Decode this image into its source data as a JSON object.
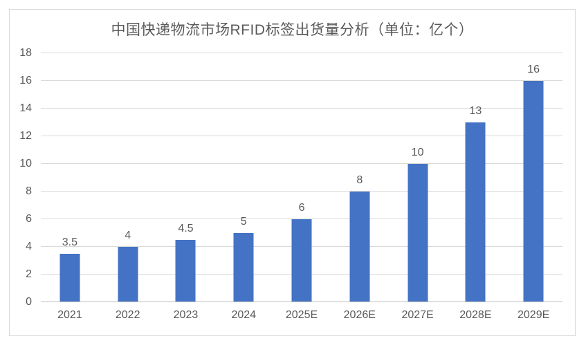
{
  "title": "中国快递物流市场RFID标签出货量分析（单位：亿个）",
  "chart_data": {
    "type": "bar",
    "title": "中国快递物流市场RFID标签出货量分析（单位：亿个）",
    "categories": [
      "2021",
      "2022",
      "2023",
      "2024",
      "2025E",
      "2026E",
      "2027E",
      "2028E",
      "2029E"
    ],
    "values": [
      3.5,
      4,
      4.5,
      5,
      6,
      8,
      10,
      13,
      16
    ],
    "xlabel": "",
    "ylabel": "",
    "ylim": [
      0,
      18
    ],
    "ytick_step": 2,
    "yticks": [
      0,
      2,
      4,
      6,
      8,
      10,
      12,
      14,
      16,
      18
    ],
    "grid": true,
    "legend": false,
    "data_labels": true,
    "bar_color": "#4472C4",
    "gridline_color": "#D9D9D9",
    "axis_line_color": "#BFBFBF",
    "text_color": "#595959",
    "background_color": "#FFFFFF",
    "border_color": "#D9D9D9"
  }
}
